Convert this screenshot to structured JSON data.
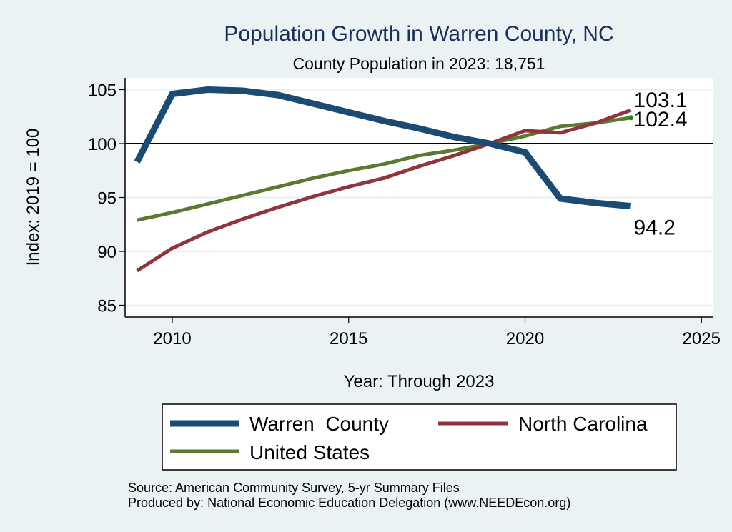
{
  "chart_data": {
    "type": "line",
    "title": "Population Growth in Warren County, NC",
    "subtitle": "County Population in 2023: 18,751",
    "xlabel": "Year: Through 2023",
    "ylabel": "Index: 2019 = 100",
    "xlim": [
      2008.7,
      2025.3
    ],
    "ylim": [
      84,
      106.1
    ],
    "xticks": [
      2010,
      2015,
      2020,
      2025
    ],
    "yticks": [
      85,
      90,
      95,
      100,
      105
    ],
    "reference_line": 100,
    "grid": "horizontal",
    "x": [
      2009,
      2010,
      2011,
      2012,
      2013,
      2014,
      2015,
      2016,
      2017,
      2018,
      2019,
      2020,
      2021,
      2022,
      2023
    ],
    "series": [
      {
        "name": "Warren  County",
        "color": "#1b4a73",
        "values": [
          98.3,
          104.6,
          105.0,
          104.9,
          104.5,
          103.7,
          102.9,
          102.1,
          101.4,
          100.6,
          100.0,
          99.2,
          94.9,
          94.5,
          94.2
        ],
        "end_label": "94.2"
      },
      {
        "name": "North Carolina",
        "color": "#92343c",
        "values": [
          88.2,
          90.3,
          91.8,
          93.0,
          94.1,
          95.1,
          96.0,
          96.8,
          97.9,
          98.9,
          100.0,
          101.2,
          101.0,
          101.9,
          103.1
        ],
        "end_label": "103.1"
      },
      {
        "name": "United States",
        "color": "#587a31",
        "values": [
          92.9,
          93.6,
          94.4,
          95.2,
          96.0,
          96.8,
          97.5,
          98.1,
          98.9,
          99.4,
          100.0,
          100.7,
          101.6,
          101.9,
          102.4
        ],
        "end_label": "102.4"
      }
    ],
    "legend": {
      "placement": "bottom",
      "entries": [
        "Warren  County",
        "North Carolina",
        "United States"
      ]
    },
    "notes": [
      "Source: American Community Survey, 5-yr Summary Files",
      "Produced by: National Economic Education Delegation (www.NEEDEcon.org)"
    ]
  }
}
